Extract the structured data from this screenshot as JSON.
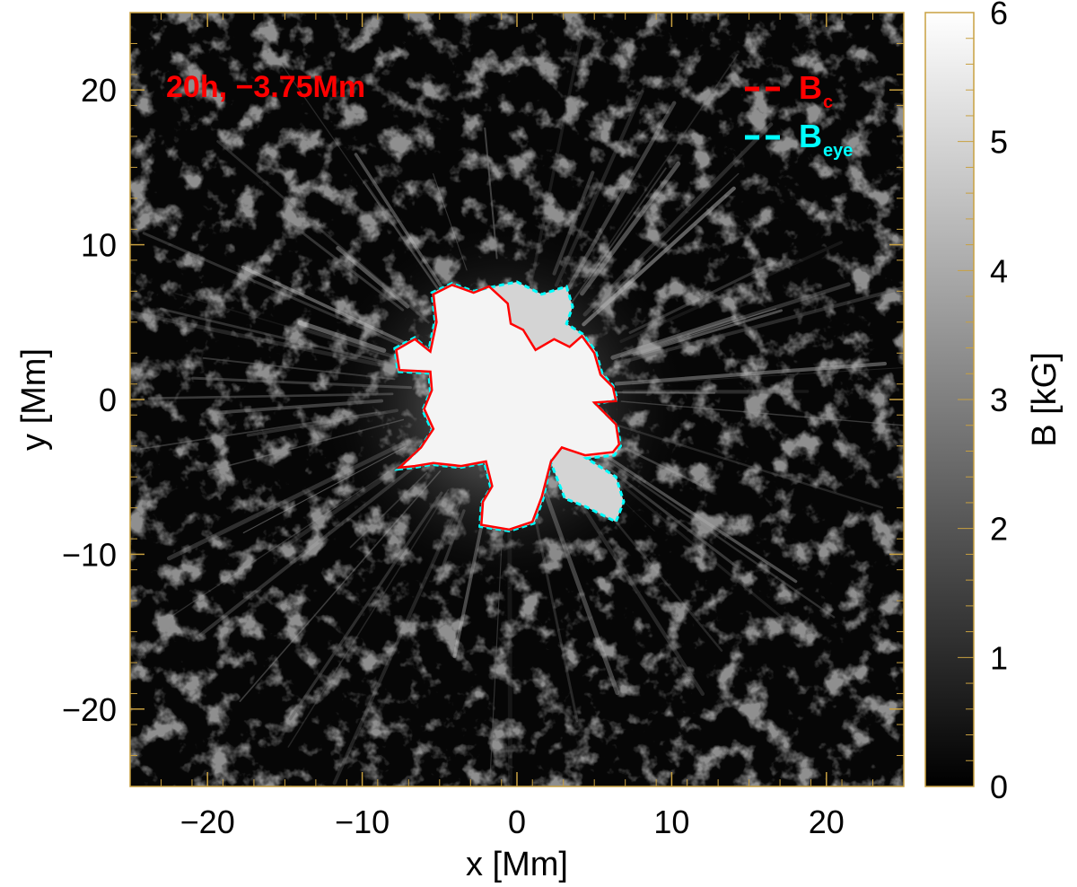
{
  "chart_data": {
    "type": "heatmap",
    "title": "",
    "annotation": "20h, −3.75Mm",
    "xlabel": "x [Mm]",
    "ylabel": "y [Mm]",
    "xlim": [
      -25,
      25
    ],
    "ylim": [
      -25,
      25
    ],
    "x_ticks": [
      -20,
      -10,
      0,
      10,
      20
    ],
    "x_tick_labels": [
      "−20",
      "−10",
      "0",
      "10",
      "20"
    ],
    "y_ticks": [
      -20,
      -10,
      0,
      10,
      20
    ],
    "y_tick_labels": [
      "−20",
      "−10",
      "0",
      "10",
      "20"
    ],
    "colorbar": {
      "label": "B [kG]",
      "range": [
        0,
        6
      ],
      "ticks": [
        0,
        1,
        2,
        3,
        4,
        5,
        6
      ],
      "tick_labels": [
        "0",
        "1",
        "2",
        "3",
        "4",
        "5",
        "6"
      ],
      "colormap": "grayscale"
    },
    "legend": {
      "placement": "top-right",
      "entries": [
        {
          "main": "B",
          "sub": "c",
          "color": "#ff0000",
          "style": "dashed"
        },
        {
          "main": "B",
          "sub": "eye",
          "color": "#00ffff",
          "style": "dashed"
        }
      ]
    },
    "contours": [
      {
        "name": "Bc",
        "color": "#ff0000",
        "points": [
          [
            -7.8,
            3.2
          ],
          [
            -6.6,
            3.9
          ],
          [
            -5.6,
            3.1
          ],
          [
            -5.2,
            5.0
          ],
          [
            -5.4,
            6.8
          ],
          [
            -4.2,
            7.4
          ],
          [
            -2.8,
            6.9
          ],
          [
            -1.8,
            7.3
          ],
          [
            -0.6,
            6.2
          ],
          [
            -0.4,
            4.9
          ],
          [
            0.4,
            4.5
          ],
          [
            1.2,
            3.2
          ],
          [
            2.4,
            3.9
          ],
          [
            3.4,
            3.4
          ],
          [
            4.2,
            4.1
          ],
          [
            5.0,
            3.0
          ],
          [
            5.4,
            1.6
          ],
          [
            6.2,
            0.8
          ],
          [
            6.4,
            -0.1
          ],
          [
            5.0,
            -0.2
          ],
          [
            6.4,
            -1.6
          ],
          [
            6.6,
            -2.9
          ],
          [
            6.2,
            -3.4
          ],
          [
            4.4,
            -3.6
          ],
          [
            2.9,
            -3.1
          ],
          [
            2.2,
            -4.0
          ],
          [
            1.6,
            -6.3
          ],
          [
            1.0,
            -7.9
          ],
          [
            -0.5,
            -8.4
          ],
          [
            -2.3,
            -8.1
          ],
          [
            -2.2,
            -6.6
          ],
          [
            -1.6,
            -5.6
          ],
          [
            -2.0,
            -4.0
          ],
          [
            -3.6,
            -4.3
          ],
          [
            -5.4,
            -4.1
          ],
          [
            -6.6,
            -4.3
          ],
          [
            -7.6,
            -4.4
          ],
          [
            -6.2,
            -3.1
          ],
          [
            -5.4,
            -1.9
          ],
          [
            -6.0,
            -0.6
          ],
          [
            -5.5,
            0.6
          ],
          [
            -5.6,
            1.8
          ],
          [
            -7.6,
            1.9
          ],
          [
            -7.8,
            3.2
          ]
        ]
      },
      {
        "name": "Beye",
        "color": "#00ffff",
        "points": [
          [
            -7.9,
            3.3
          ],
          [
            -6.6,
            4.0
          ],
          [
            -5.7,
            3.2
          ],
          [
            -5.3,
            5.1
          ],
          [
            -5.5,
            6.9
          ],
          [
            -4.2,
            7.5
          ],
          [
            -2.8,
            7.0
          ],
          [
            -1.0,
            7.4
          ],
          [
            0.0,
            7.6
          ],
          [
            1.6,
            6.8
          ],
          [
            3.2,
            7.3
          ],
          [
            3.6,
            6.0
          ],
          [
            3.2,
            4.9
          ],
          [
            4.3,
            4.2
          ],
          [
            5.1,
            3.1
          ],
          [
            5.5,
            1.7
          ],
          [
            6.2,
            0.9
          ],
          [
            6.5,
            0.0
          ],
          [
            5.1,
            -0.3
          ],
          [
            6.5,
            -1.7
          ],
          [
            6.7,
            -3.0
          ],
          [
            6.3,
            -3.6
          ],
          [
            4.5,
            -3.8
          ],
          [
            6.4,
            -5.0
          ],
          [
            6.9,
            -6.6
          ],
          [
            6.4,
            -7.9
          ],
          [
            4.4,
            -6.9
          ],
          [
            3.1,
            -6.4
          ],
          [
            2.2,
            -4.1
          ],
          [
            1.7,
            -6.4
          ],
          [
            1.1,
            -8.0
          ],
          [
            -0.5,
            -8.5
          ],
          [
            -2.4,
            -8.2
          ],
          [
            -2.3,
            -6.7
          ],
          [
            -1.7,
            -5.7
          ],
          [
            -2.1,
            -4.1
          ],
          [
            -3.7,
            -4.4
          ],
          [
            -5.5,
            -4.2
          ],
          [
            -6.7,
            -4.4
          ],
          [
            -7.7,
            -4.5
          ],
          [
            -6.3,
            -3.2
          ],
          [
            -5.5,
            -2.0
          ],
          [
            -6.1,
            -0.7
          ],
          [
            -5.6,
            0.5
          ],
          [
            -5.7,
            1.7
          ],
          [
            -7.7,
            1.8
          ],
          [
            -7.9,
            3.3
          ]
        ]
      }
    ]
  }
}
